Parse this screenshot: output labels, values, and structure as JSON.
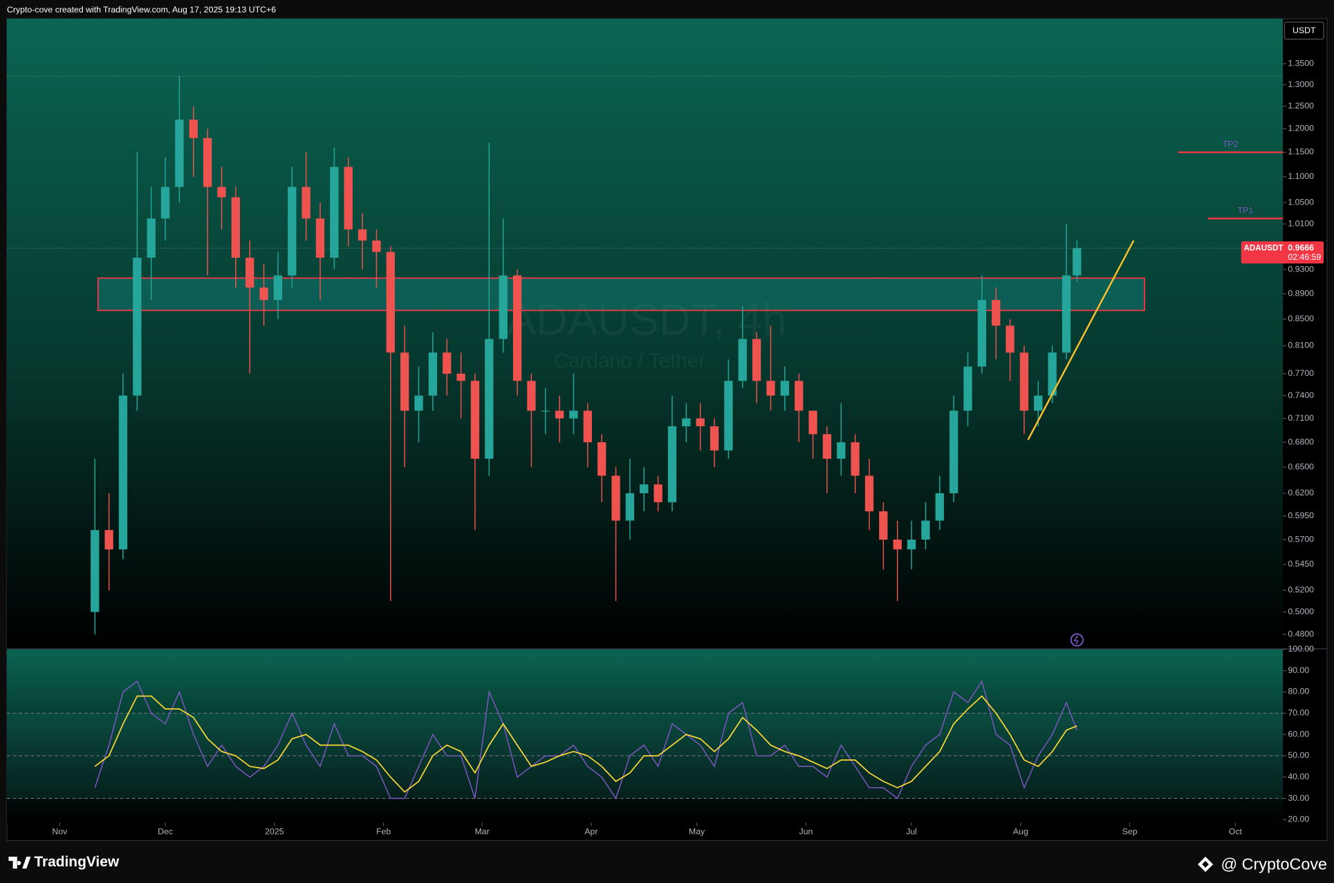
{
  "header": {
    "text": "Crypto-cove created with TradingView.com, Aug 17, 2025 19:13 UTC+6"
  },
  "footer": {
    "brand": "TradingView",
    "handle": "@ CryptoCove"
  },
  "chart_data": [
    {
      "type": "candlestick",
      "symbol": "ADAUSDT",
      "currency": "USDT",
      "watermark": "ADAUSDT, 4h",
      "watermark_subtitle": "Cardano / Tether",
      "countdown": "02:46:59",
      "up_color": "#26a69a",
      "down_color": "#ef5350",
      "log_scale": true,
      "x": [
        10,
        14,
        18,
        22,
        26,
        30,
        34,
        38,
        42,
        46,
        50,
        54,
        58,
        62,
        66,
        70,
        74,
        78,
        82,
        86,
        90,
        94,
        98,
        102,
        106,
        110,
        114,
        118,
        122,
        126,
        130,
        134,
        138,
        142,
        146,
        150,
        154,
        158,
        162,
        166,
        170,
        174,
        178,
        182,
        186,
        190,
        194,
        198,
        202,
        206,
        210,
        214,
        218,
        222,
        226,
        230,
        234,
        238,
        242,
        246,
        250,
        254,
        258,
        262,
        266,
        270,
        274,
        278,
        282,
        286,
        289
      ],
      "open": [
        0.5,
        0.58,
        0.56,
        0.74,
        0.95,
        1.02,
        1.08,
        1.22,
        1.18,
        1.08,
        1.06,
        0.95,
        0.9,
        0.88,
        0.92,
        1.08,
        1.02,
        0.95,
        1.12,
        1.0,
        0.98,
        0.96,
        0.8,
        0.72,
        0.74,
        0.8,
        0.77,
        0.76,
        0.66,
        0.82,
        0.92,
        0.76,
        0.72,
        0.72,
        0.71,
        0.72,
        0.68,
        0.64,
        0.59,
        0.62,
        0.63,
        0.61,
        0.7,
        0.71,
        0.7,
        0.67,
        0.76,
        0.82,
        0.76,
        0.74,
        0.76,
        0.72,
        0.69,
        0.66,
        0.68,
        0.64,
        0.6,
        0.57,
        0.56,
        0.57,
        0.59,
        0.62,
        0.72,
        0.78,
        0.88,
        0.84,
        0.8,
        0.72,
        0.74,
        0.8,
        0.92
      ],
      "high": [
        0.66,
        0.62,
        0.77,
        1.15,
        1.08,
        1.14,
        1.32,
        1.25,
        1.2,
        1.12,
        1.08,
        0.98,
        0.94,
        0.96,
        1.12,
        1.15,
        1.05,
        1.16,
        1.14,
        1.03,
        1.0,
        0.97,
        0.84,
        0.78,
        0.83,
        0.82,
        0.8,
        0.77,
        1.17,
        1.02,
        0.93,
        0.77,
        0.75,
        0.74,
        0.77,
        0.73,
        0.69,
        0.65,
        0.66,
        0.65,
        0.64,
        0.74,
        0.73,
        0.73,
        0.71,
        0.79,
        0.87,
        0.83,
        0.84,
        0.78,
        0.77,
        0.72,
        0.7,
        0.73,
        0.69,
        0.66,
        0.61,
        0.59,
        0.59,
        0.61,
        0.64,
        0.74,
        0.8,
        0.92,
        0.9,
        0.85,
        0.81,
        0.76,
        0.81,
        1.01,
        0.98
      ],
      "low": [
        0.48,
        0.52,
        0.55,
        0.72,
        0.88,
        0.98,
        1.05,
        1.1,
        0.92,
        1.0,
        0.9,
        0.77,
        0.84,
        0.85,
        0.9,
        0.98,
        0.88,
        0.93,
        0.97,
        0.93,
        0.9,
        0.51,
        0.65,
        0.68,
        0.72,
        0.74,
        0.71,
        0.58,
        0.64,
        0.8,
        0.74,
        0.65,
        0.69,
        0.68,
        0.69,
        0.65,
        0.61,
        0.51,
        0.57,
        0.6,
        0.6,
        0.6,
        0.68,
        0.67,
        0.65,
        0.66,
        0.75,
        0.73,
        0.72,
        0.72,
        0.68,
        0.66,
        0.62,
        0.64,
        0.62,
        0.58,
        0.54,
        0.51,
        0.54,
        0.56,
        0.58,
        0.61,
        0.7,
        0.77,
        0.79,
        0.76,
        0.69,
        0.7,
        0.73,
        0.79,
        0.91
      ],
      "close": [
        0.58,
        0.56,
        0.74,
        0.95,
        1.02,
        1.08,
        1.22,
        1.18,
        1.08,
        1.06,
        0.95,
        0.9,
        0.88,
        0.92,
        1.08,
        1.02,
        0.95,
        1.12,
        1.0,
        0.98,
        0.96,
        0.8,
        0.72,
        0.74,
        0.8,
        0.77,
        0.76,
        0.66,
        0.82,
        0.92,
        0.76,
        0.72,
        0.72,
        0.71,
        0.72,
        0.68,
        0.64,
        0.59,
        0.62,
        0.63,
        0.61,
        0.7,
        0.71,
        0.7,
        0.67,
        0.76,
        0.82,
        0.76,
        0.74,
        0.76,
        0.72,
        0.69,
        0.66,
        0.68,
        0.64,
        0.6,
        0.57,
        0.56,
        0.57,
        0.59,
        0.62,
        0.72,
        0.78,
        0.88,
        0.84,
        0.8,
        0.72,
        0.74,
        0.8,
        0.92,
        0.9666
      ],
      "xlim": [
        -15,
        347.5
      ],
      "xticks": [
        {
          "value": 0,
          "label": "Nov"
        },
        {
          "value": 30,
          "label": "Dec"
        },
        {
          "value": 61,
          "label": "2025"
        },
        {
          "value": 92,
          "label": "Feb"
        },
        {
          "value": 120,
          "label": "Mar"
        },
        {
          "value": 151,
          "label": "Apr"
        },
        {
          "value": 181,
          "label": "May"
        },
        {
          "value": 212,
          "label": "Jun"
        },
        {
          "value": 242,
          "label": "Jul"
        },
        {
          "value": 273,
          "label": "Aug"
        },
        {
          "value": 304,
          "label": "Sep"
        },
        {
          "value": 334,
          "label": "Oct"
        }
      ],
      "ylim": [
        0.468,
        1.465
      ],
      "yticks": [
        {
          "value": 1.35,
          "label": "1.3500"
        },
        {
          "value": 1.3,
          "label": "1.3000"
        },
        {
          "value": 1.25,
          "label": "1.2500"
        },
        {
          "value": 1.2,
          "label": "1.2000"
        },
        {
          "value": 1.15,
          "label": "1.1500"
        },
        {
          "value": 1.1,
          "label": "1.1000"
        },
        {
          "value": 1.05,
          "label": "1.0500"
        },
        {
          "value": 1.01,
          "label": "1.0100"
        },
        {
          "value": 0.93,
          "label": "0.9300"
        },
        {
          "value": 0.89,
          "label": "0.8900"
        },
        {
          "value": 0.85,
          "label": "0.8500"
        },
        {
          "value": 0.81,
          "label": "0.8100"
        },
        {
          "value": 0.77,
          "label": "0.7700"
        },
        {
          "value": 0.74,
          "label": "0.7400"
        },
        {
          "value": 0.71,
          "label": "0.7100"
        },
        {
          "value": 0.68,
          "label": "0.6800"
        },
        {
          "value": 0.65,
          "label": "0.6500"
        },
        {
          "value": 0.62,
          "label": "0.6200"
        },
        {
          "value": 0.595,
          "label": "0.5950"
        },
        {
          "value": 0.57,
          "label": "0.5700"
        },
        {
          "value": 0.545,
          "label": "0.5450"
        },
        {
          "value": 0.52,
          "label": "0.5200"
        },
        {
          "value": 0.5,
          "label": "0.5000"
        },
        {
          "value": 0.48,
          "label": "0.4800"
        }
      ],
      "zone": {
        "x": [
          10.9,
          308.2
        ],
        "top": 0.9156,
        "bottom": 0.8635,
        "color": "#f23645"
      },
      "trendline": {
        "x": [
          275.1,
          305.1
        ],
        "values": [
          0.683,
          0.98
        ],
        "color": "#fbc02d"
      },
      "targets": [
        {
          "label": "TP2",
          "x": [
            317.7,
            347.5
          ],
          "value": 1.15
        },
        {
          "label": "TP1",
          "x": [
            326.2,
            347.5
          ],
          "value": 1.02
        }
      ],
      "target_color": "#f23645",
      "target_label_color": "#7e57c2"
    },
    {
      "type": "line",
      "x": [
        10,
        14,
        18,
        22,
        26,
        30,
        34,
        38,
        42,
        46,
        50,
        54,
        58,
        62,
        66,
        70,
        74,
        78,
        82,
        86,
        90,
        94,
        98,
        102,
        106,
        110,
        114,
        118,
        122,
        126,
        130,
        134,
        138,
        142,
        146,
        150,
        154,
        158,
        162,
        166,
        170,
        174,
        178,
        182,
        186,
        190,
        194,
        198,
        202,
        206,
        210,
        214,
        218,
        222,
        226,
        230,
        234,
        238,
        242,
        246,
        250,
        254,
        258,
        262,
        266,
        270,
        274,
        278,
        282,
        286,
        289
      ],
      "series": [
        {
          "color": "#7e57c2",
          "values": [
            35,
            55,
            80,
            85,
            70,
            65,
            80,
            60,
            45,
            55,
            45,
            40,
            45,
            55,
            70,
            55,
            45,
            65,
            50,
            50,
            45,
            30,
            30,
            45,
            60,
            50,
            50,
            30,
            80,
            65,
            40,
            45,
            50,
            50,
            55,
            45,
            40,
            30,
            50,
            55,
            45,
            65,
            60,
            55,
            45,
            70,
            75,
            50,
            50,
            55,
            45,
            45,
            40,
            55,
            45,
            35,
            35,
            30,
            45,
            55,
            60,
            80,
            75,
            85,
            60,
            55,
            35,
            50,
            60,
            75,
            62
          ]
        },
        {
          "color": "#fdd835",
          "values": [
            45,
            50,
            65,
            78,
            78,
            72,
            72,
            68,
            58,
            52,
            50,
            45,
            44,
            48,
            58,
            60,
            55,
            55,
            55,
            52,
            48,
            40,
            33,
            38,
            50,
            55,
            52,
            42,
            55,
            65,
            55,
            45,
            47,
            50,
            52,
            50,
            45,
            38,
            42,
            50,
            50,
            55,
            60,
            58,
            52,
            58,
            68,
            62,
            55,
            52,
            50,
            47,
            44,
            48,
            48,
            42,
            38,
            35,
            38,
            45,
            52,
            65,
            72,
            78,
            70,
            60,
            48,
            45,
            52,
            62,
            64
          ]
        }
      ],
      "xlim": [
        -15,
        347.5
      ],
      "ylim": [
        18.6,
        100
      ],
      "yticks": [
        {
          "value": 100,
          "label": "100.00"
        },
        {
          "value": 90,
          "label": "90.00"
        },
        {
          "value": 80,
          "label": "80.00"
        },
        {
          "value": 70,
          "label": "70.00"
        },
        {
          "value": 60,
          "label": "60.00"
        },
        {
          "value": 50,
          "label": "50.00"
        },
        {
          "value": 40,
          "label": "40.00"
        },
        {
          "value": 30,
          "label": "30.00"
        },
        {
          "value": 20,
          "label": "20.00"
        }
      ],
      "hlines": [
        70,
        50,
        30
      ],
      "band": [
        30,
        70
      ]
    }
  ]
}
